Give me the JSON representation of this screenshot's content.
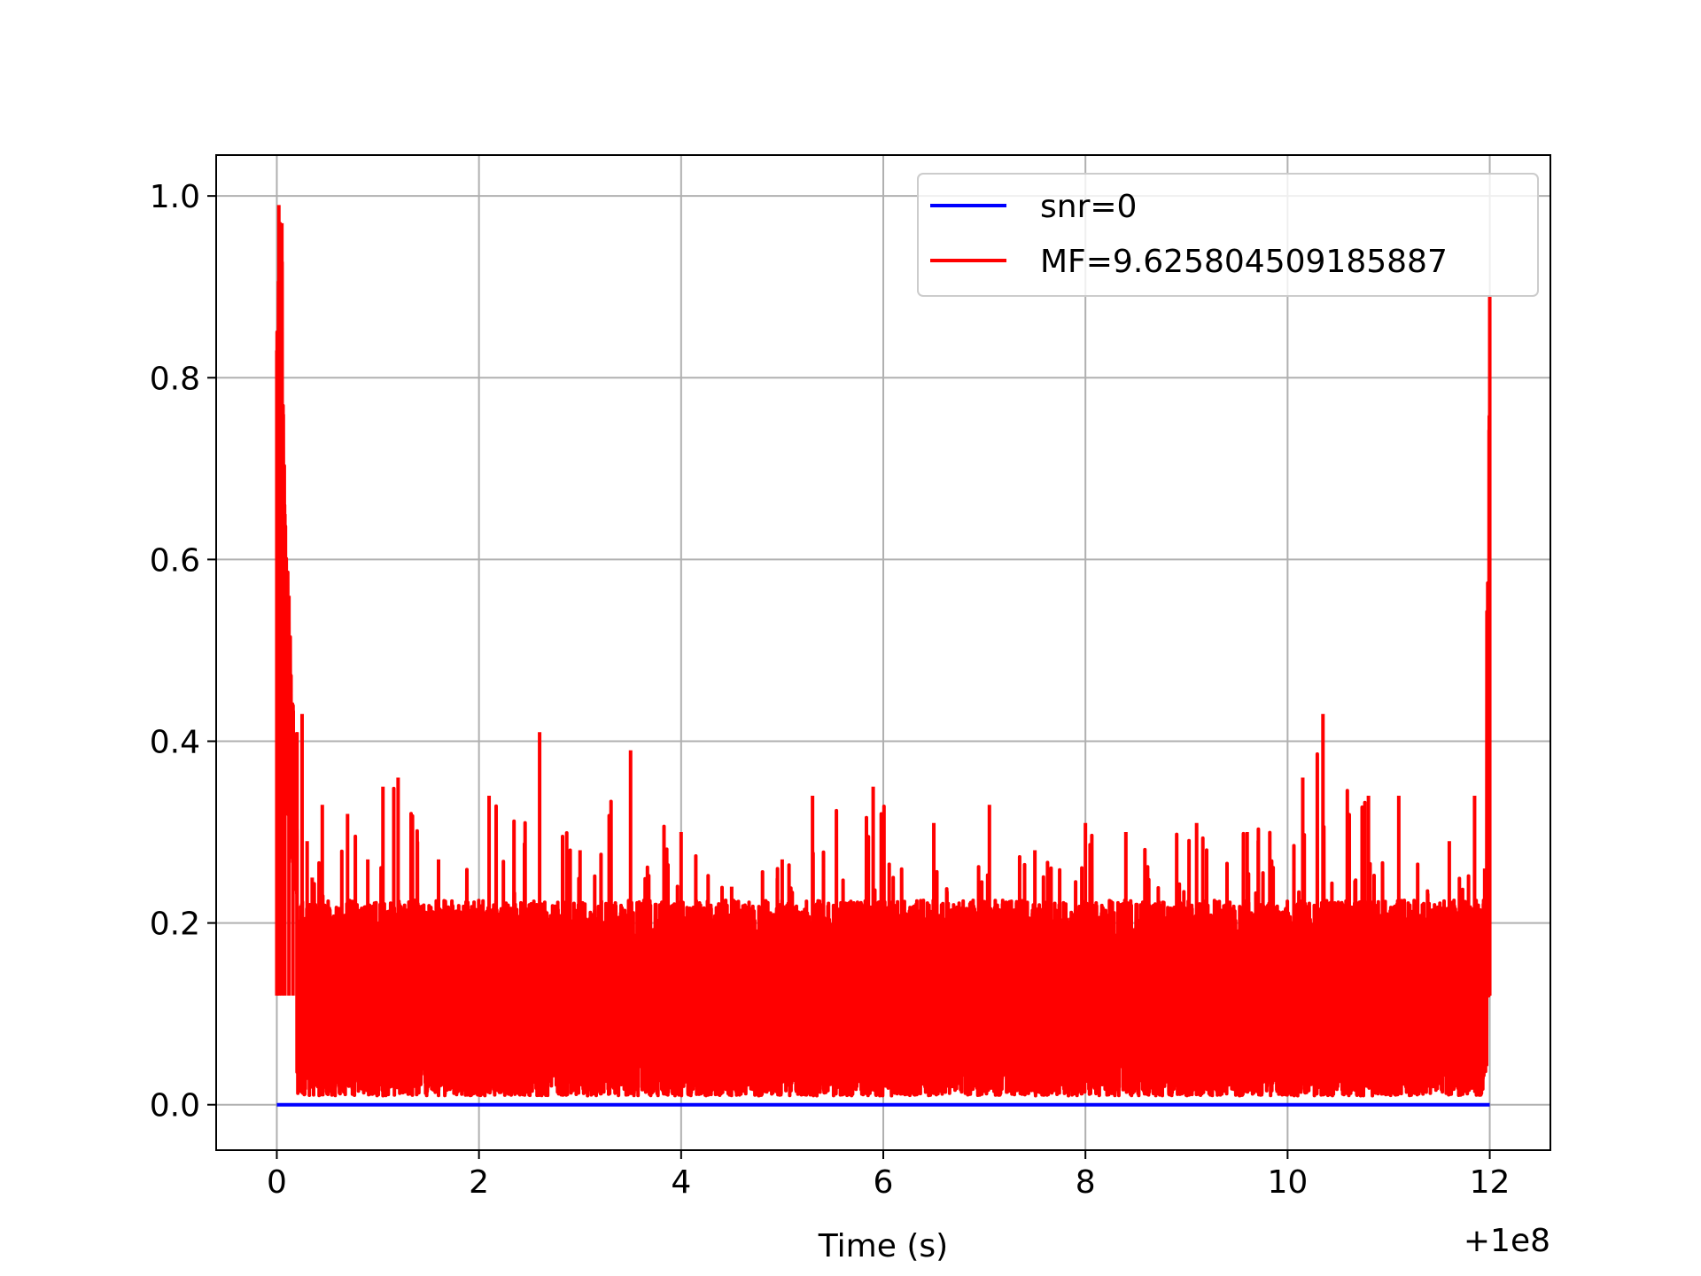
{
  "chart_data": {
    "type": "line",
    "title": "",
    "xlabel": "Time (s)",
    "ylabel": "",
    "x_offset_text": "+1e8",
    "xlim": [
      -0.6,
      12.6
    ],
    "ylim": [
      -0.05,
      1.045
    ],
    "grid": true,
    "legend_position": "upper right",
    "xticks": [
      0,
      2,
      4,
      6,
      8,
      10,
      12
    ],
    "xtick_labels": [
      "0",
      "2",
      "4",
      "6",
      "8",
      "10",
      "12"
    ],
    "yticks": [
      0.0,
      0.2,
      0.4,
      0.6,
      0.8,
      1.0
    ],
    "ytick_labels": [
      "0.0",
      "0.2",
      "0.4",
      "0.6",
      "0.8",
      "1.0"
    ],
    "series": [
      {
        "name": "snr=0",
        "color": "#0000ff",
        "x": [
          0,
          12
        ],
        "y": [
          0.0,
          0.0
        ]
      },
      {
        "name": "MF=9.625804509185887",
        "color": "#ff0000",
        "x": [
          0.0,
          0.02,
          0.05,
          0.08,
          0.12,
          0.16,
          0.2,
          0.25,
          0.3,
          0.35,
          0.45,
          0.7,
          0.9,
          1.05,
          1.2,
          1.6,
          2.1,
          2.6,
          3.0,
          3.5,
          4.0,
          4.5,
          5.0,
          5.3,
          5.9,
          6.5,
          7.05,
          7.5,
          8.0,
          8.4,
          9.1,
          9.6,
          10.15,
          10.35,
          10.8,
          11.1,
          11.6,
          11.85,
          11.95,
          12.0
        ],
        "y": [
          0.83,
          0.99,
          0.97,
          0.65,
          0.56,
          0.44,
          0.41,
          0.43,
          0.29,
          0.25,
          0.33,
          0.32,
          0.27,
          0.35,
          0.36,
          0.27,
          0.34,
          0.41,
          0.28,
          0.39,
          0.3,
          0.24,
          0.27,
          0.34,
          0.35,
          0.31,
          0.33,
          0.28,
          0.31,
          0.3,
          0.31,
          0.3,
          0.36,
          0.43,
          0.34,
          0.34,
          0.29,
          0.34,
          0.26,
          0.89
        ]
      }
    ],
    "noise_band": {
      "mean": 0.12,
      "min": 0.01,
      "max": 0.3,
      "samples_per_unit": 1100
    }
  }
}
